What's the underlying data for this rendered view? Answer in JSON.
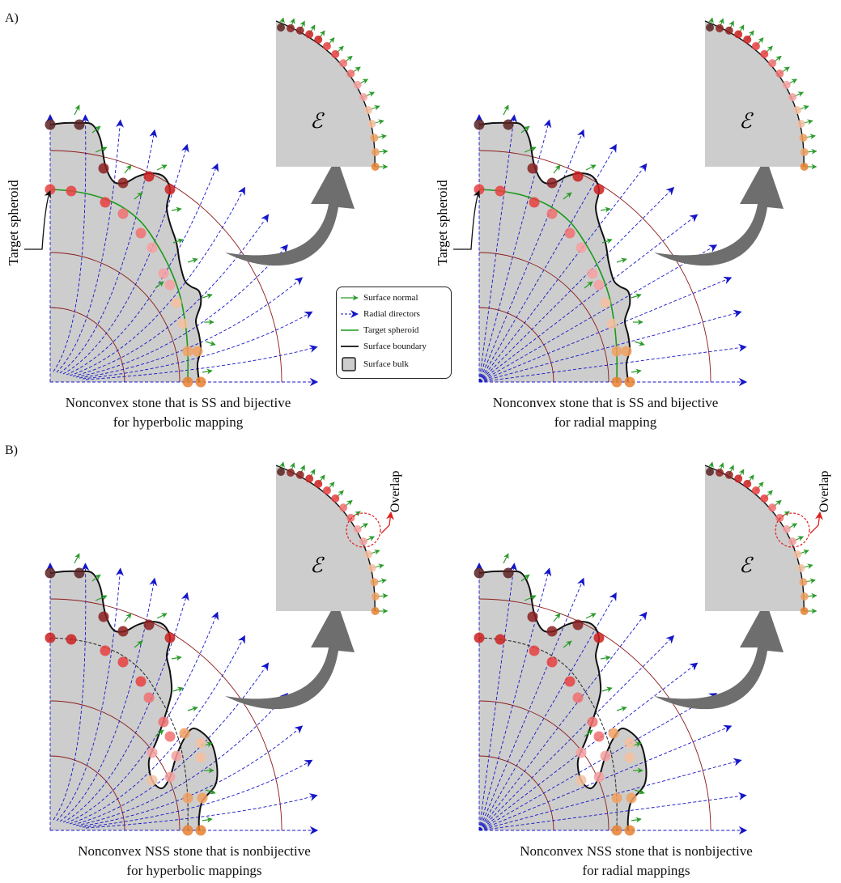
{
  "panel_labels": {
    "a": "A)",
    "b": "B)"
  },
  "side_label": "Target spheroid",
  "ellipsoid_symbol": "ℰ",
  "overlap_label": "Overlap",
  "captions": {
    "a_left": [
      "Nonconvex stone that is SS and bijective",
      "for hyperbolic mapping"
    ],
    "a_right": [
      "Nonconvex stone that is SS and bijective",
      "for radial mapping"
    ],
    "b_left": [
      "Nonconvex NSS stone that is nonbijective",
      "for hyperbolic mappings"
    ],
    "b_right": [
      "Nonconvex NSS stone that is nonbijective",
      "for radial mappings"
    ]
  },
  "legend": {
    "items": [
      {
        "label": "Surface normal",
        "icon": "green-arrow"
      },
      {
        "label": "Radial directors",
        "icon": "blue-dashed-arrow"
      },
      {
        "label": "Target spheroid",
        "icon": "green-line"
      },
      {
        "label": "Surface boundary",
        "icon": "black-line"
      },
      {
        "label": "Surface bulk",
        "icon": "gray-square"
      }
    ]
  },
  "colors": {
    "surface_normal": "#2a9a2a",
    "radial_director": "#1515c8",
    "target_spheroid": "#1a9a1a",
    "boundary": "#111111",
    "bulk": "#cdcdcd",
    "arc": "#8b1a1a",
    "big_arrow": "#6e6e6e",
    "overlap": "#e02020",
    "marker_gradient": [
      "#5a2222",
      "#8b2020",
      "#cc2020",
      "#e84040",
      "#f07070",
      "#f5a0a0",
      "#f5c0a0",
      "#f0a060",
      "#e88030"
    ]
  }
}
